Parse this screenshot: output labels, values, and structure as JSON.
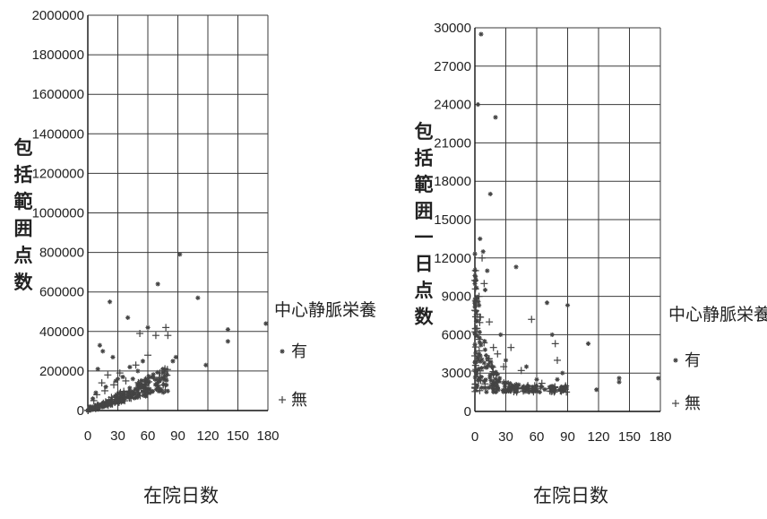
{
  "colors": {
    "grid": "#3a3a3a",
    "marker": "#444444",
    "text": "#222222"
  },
  "chart_data": [
    {
      "type": "scatter",
      "xlabel": "在院日数",
      "ylabel_chars": [
        "包",
        "括",
        "範",
        "囲",
        "点",
        "数"
      ],
      "xlim": [
        0,
        180
      ],
      "ylim": [
        0,
        2000000
      ],
      "xticks": [
        "0",
        "30",
        "60",
        "90",
        "120",
        "150",
        "180"
      ],
      "yticks": [
        "0",
        "200000",
        "400000",
        "600000",
        "800000",
        "1000000",
        "1200000",
        "1400000",
        "1600000",
        "1800000",
        "2000000"
      ],
      "grid": true,
      "legend": {
        "title": "中心静脈栄養",
        "placement": "right",
        "items": [
          {
            "label": "有",
            "marker": "asterisk"
          },
          {
            "label": "無",
            "marker": "plus"
          }
        ]
      },
      "series": [
        {
          "name": "有",
          "marker": "asterisk",
          "points": [
            [
              2,
              20000
            ],
            [
              5,
              60000
            ],
            [
              8,
              90000
            ],
            [
              10,
              210000
            ],
            [
              12,
              330000
            ],
            [
              15,
              300000
            ],
            [
              18,
              120000
            ],
            [
              22,
              550000
            ],
            [
              25,
              270000
            ],
            [
              28,
              150000
            ],
            [
              30,
              160000
            ],
            [
              35,
              170000
            ],
            [
              40,
              470000
            ],
            [
              42,
              220000
            ],
            [
              45,
              160000
            ],
            [
              50,
              200000
            ],
            [
              55,
              250000
            ],
            [
              60,
              420000
            ],
            [
              65,
              170000
            ],
            [
              70,
              640000
            ],
            [
              75,
              210000
            ],
            [
              85,
              250000
            ],
            [
              88,
              270000
            ],
            [
              92,
              790000
            ],
            [
              110,
              570000
            ],
            [
              118,
              230000
            ],
            [
              140,
              350000
            ],
            [
              140,
              410000
            ],
            [
              178,
              440000
            ]
          ]
        },
        {
          "name": "無",
          "marker": "plus",
          "points": [
            [
              3,
              10000
            ],
            [
              6,
              50000
            ],
            [
              9,
              80000
            ],
            [
              14,
              140000
            ],
            [
              17,
              100000
            ],
            [
              20,
              180000
            ],
            [
              26,
              130000
            ],
            [
              32,
              190000
            ],
            [
              38,
              150000
            ],
            [
              48,
              230000
            ],
            [
              52,
              390000
            ],
            [
              60,
              280000
            ],
            [
              68,
              380000
            ],
            [
              72,
              190000
            ],
            [
              78,
              420000
            ],
            [
              80,
              380000
            ]
          ]
        }
      ],
      "dense_cluster": {
        "x_range": [
          0,
          80
        ],
        "y_range": [
          0,
          200000
        ]
      }
    },
    {
      "type": "scatter",
      "xlabel": "在院日数",
      "ylabel_chars": [
        "包",
        "括",
        "範",
        "囲",
        "一",
        "日",
        "点",
        "数"
      ],
      "xlim": [
        0,
        180
      ],
      "ylim": [
        0,
        30000
      ],
      "xticks": [
        "0",
        "30",
        "60",
        "90",
        "120",
        "150",
        "180"
      ],
      "yticks": [
        "0",
        "3000",
        "6000",
        "9000",
        "12000",
        "15000",
        "18000",
        "21000",
        "24000",
        "27000",
        "30000"
      ],
      "grid": true,
      "legend": {
        "title": "中心静脈栄養",
        "placement": "right",
        "items": [
          {
            "label": "有",
            "marker": "asterisk"
          },
          {
            "label": "無",
            "marker": "plus"
          }
        ]
      },
      "series": [
        {
          "name": "有",
          "marker": "asterisk",
          "points": [
            [
              3,
              24000
            ],
            [
              6,
              29500
            ],
            [
              12,
              11000
            ],
            [
              15,
              17000
            ],
            [
              20,
              23000
            ],
            [
              25,
              6000
            ],
            [
              30,
              4000
            ],
            [
              40,
              11300
            ],
            [
              50,
              3500
            ],
            [
              60,
              2500
            ],
            [
              70,
              8500
            ],
            [
              75,
              6000
            ],
            [
              80,
              2500
            ],
            [
              85,
              3000
            ],
            [
              90,
              8300
            ],
            [
              110,
              5300
            ],
            [
              118,
              1700
            ],
            [
              140,
              2300
            ],
            [
              140,
              2600
            ],
            [
              178,
              2600
            ],
            [
              5,
              13500
            ],
            [
              8,
              12500
            ],
            [
              10,
              9500
            ]
          ]
        },
        {
          "name": "無",
          "marker": "plus",
          "points": [
            [
              2,
              6500
            ],
            [
              4,
              9000
            ],
            [
              7,
              12000
            ],
            [
              9,
              10000
            ],
            [
              14,
              7000
            ],
            [
              18,
              5000
            ],
            [
              22,
              4500
            ],
            [
              28,
              3500
            ],
            [
              35,
              5000
            ],
            [
              45,
              3200
            ],
            [
              55,
              7200
            ],
            [
              65,
              2200
            ],
            [
              78,
              5300
            ],
            [
              80,
              4000
            ],
            [
              88,
              2000
            ]
          ]
        }
      ],
      "dense_cluster": {
        "x_range": [
          0,
          90
        ],
        "y_range": [
          1500,
          13000
        ]
      }
    }
  ]
}
